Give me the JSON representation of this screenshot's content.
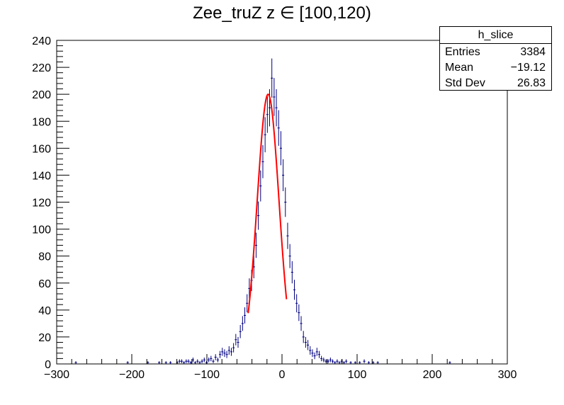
{
  "chart_data": {
    "type": "histogram",
    "title": "Zee_truZ z  ∈ [100,120)",
    "xlim": [
      -300,
      300
    ],
    "ylim": [
      0,
      240
    ],
    "x_ticks": [
      -300,
      -200,
      -100,
      0,
      100,
      200,
      300
    ],
    "y_ticks": [
      0,
      20,
      40,
      60,
      80,
      100,
      120,
      140,
      160,
      180,
      200,
      220,
      240
    ],
    "x_tick_labels": [
      "−300",
      "−200",
      "−100",
      "0",
      "100",
      "200",
      "300"
    ],
    "y_tick_labels": [
      "0",
      "20",
      "40",
      "60",
      "80",
      "100",
      "120",
      "140",
      "160",
      "180",
      "200",
      "220",
      "240"
    ],
    "series_color": "#000080",
    "fit_color": "#ff0000",
    "bin_width": 3,
    "bins": [
      [
        -276,
        1
      ],
      [
        -207,
        1
      ],
      [
        -180,
        1
      ],
      [
        -165,
        1
      ],
      [
        -156,
        1
      ],
      [
        -150,
        1
      ],
      [
        -141,
        1
      ],
      [
        -138,
        2
      ],
      [
        -135,
        2
      ],
      [
        -132,
        1
      ],
      [
        -129,
        2
      ],
      [
        -126,
        2
      ],
      [
        -123,
        1
      ],
      [
        -120,
        3
      ],
      [
        -117,
        1
      ],
      [
        -114,
        2
      ],
      [
        -111,
        1
      ],
      [
        -108,
        2
      ],
      [
        -105,
        3
      ],
      [
        -102,
        1
      ],
      [
        -99,
        3
      ],
      [
        -96,
        4
      ],
      [
        -93,
        2
      ],
      [
        -90,
        5
      ],
      [
        -87,
        3
      ],
      [
        -84,
        7
      ],
      [
        -81,
        9
      ],
      [
        -78,
        8
      ],
      [
        -75,
        7
      ],
      [
        -72,
        10
      ],
      [
        -69,
        9
      ],
      [
        -66,
        12
      ],
      [
        -63,
        18
      ],
      [
        -60,
        16
      ],
      [
        -57,
        24
      ],
      [
        -54,
        30
      ],
      [
        -51,
        36
      ],
      [
        -48,
        45
      ],
      [
        -45,
        56
      ],
      [
        -42,
        62
      ],
      [
        -39,
        72
      ],
      [
        -36,
        88
      ],
      [
        -33,
        110
      ],
      [
        -30,
        132
      ],
      [
        -27,
        150
      ],
      [
        -24,
        170
      ],
      [
        -21,
        185
      ],
      [
        -18,
        190
      ],
      [
        -15,
        212
      ],
      [
        -12,
        198
      ],
      [
        -9,
        190
      ],
      [
        -6,
        175
      ],
      [
        -3,
        160
      ],
      [
        0,
        140
      ],
      [
        3,
        120
      ],
      [
        6,
        95
      ],
      [
        9,
        80
      ],
      [
        12,
        68
      ],
      [
        15,
        55
      ],
      [
        18,
        45
      ],
      [
        21,
        38
      ],
      [
        24,
        30
      ],
      [
        27,
        20
      ],
      [
        30,
        16
      ],
      [
        33,
        14
      ],
      [
        36,
        10
      ],
      [
        39,
        8
      ],
      [
        42,
        6
      ],
      [
        45,
        9
      ],
      [
        48,
        7
      ],
      [
        51,
        4
      ],
      [
        54,
        3
      ],
      [
        57,
        2
      ],
      [
        60,
        2
      ],
      [
        63,
        3
      ],
      [
        66,
        2
      ],
      [
        69,
        1
      ],
      [
        72,
        2
      ],
      [
        75,
        1
      ],
      [
        78,
        2
      ],
      [
        81,
        1
      ],
      [
        84,
        2
      ],
      [
        90,
        1
      ],
      [
        96,
        1
      ],
      [
        102,
        1
      ],
      [
        108,
        2
      ],
      [
        114,
        1
      ],
      [
        120,
        1
      ],
      [
        126,
        1
      ],
      [
        222,
        1
      ]
    ],
    "fit": {
      "type": "gaussian",
      "range": [
        -45,
        6
      ],
      "mean": -18.5,
      "sigma": 14.5,
      "amplitude": 200
    }
  },
  "stats": {
    "name": "h_slice",
    "rows": [
      {
        "label": "Entries",
        "value": "3384"
      },
      {
        "label": "Mean",
        "value": "−19.12"
      },
      {
        "label": "Std Dev",
        "value": "26.83"
      }
    ]
  }
}
